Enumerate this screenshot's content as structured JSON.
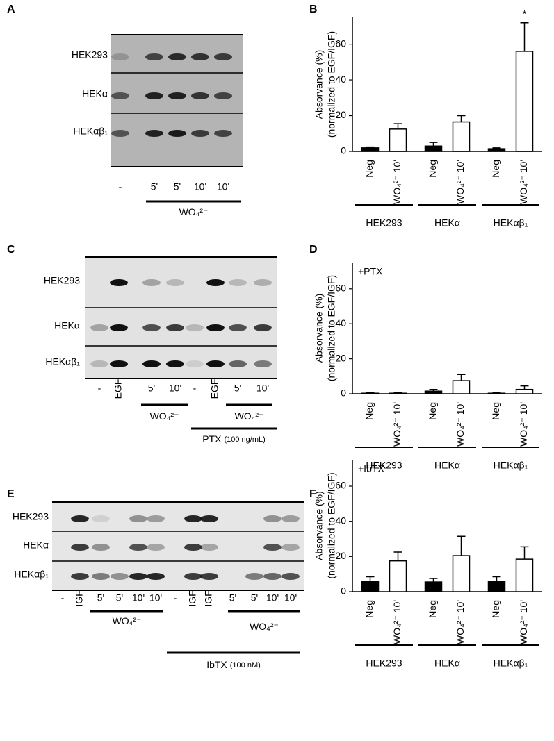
{
  "blots": [
    {
      "panel": "A",
      "rows": [
        "HEK293",
        "HEKα",
        "HEKαβ₁"
      ],
      "lanes": [
        "-",
        "5'",
        "5'",
        "10'",
        "10'"
      ],
      "groups": [
        {
          "label": "WO₄²⁻"
        }
      ]
    },
    {
      "panel": "C",
      "rows": [
        "HEK293",
        "HEKα",
        "HEKαβ₁"
      ],
      "lanes": [
        "-",
        "EGF",
        "5'",
        "10'",
        "-",
        "EGF",
        "5'",
        "10'"
      ],
      "groups": [
        {
          "label": "WO₄²⁻"
        },
        {
          "label": "WO₄²⁻"
        },
        {
          "label": "PTX",
          "note": "(100 ng/mL)"
        }
      ]
    },
    {
      "panel": "E",
      "rows": [
        "HEK293",
        "HEKα",
        "HEKαβ₁"
      ],
      "lanes": [
        "-",
        "IGF",
        "5'",
        "5'",
        "10'",
        "10'",
        "-",
        "IGF",
        "IGF",
        "5'",
        "5'",
        "10'",
        "10'"
      ],
      "groups": [
        {
          "label": "WO₄²⁻"
        },
        {
          "label": "WO₄²⁻"
        },
        {
          "label": "IbTX",
          "note": "(100 nM)"
        }
      ]
    }
  ],
  "chart_data": [
    {
      "type": "bar",
      "panel": "B",
      "y_label": [
        "Absorvance (%)",
        "(normalized to EGF/IGF)"
      ],
      "categories": [
        "Neg",
        "WO₄²⁻ 10'",
        "Neg",
        "WO₄²⁻ 10'",
        "Neg",
        "WO₄²⁻ 10'"
      ],
      "groups": [
        "HEK293",
        "HEKα",
        "HEKαβ₁"
      ],
      "values": [
        2,
        12.5,
        3,
        16.5,
        1.5,
        56
      ],
      "errors": [
        0.5,
        3,
        2,
        3.5,
        0.5,
        16
      ],
      "colors": [
        "#000000",
        "#ffffff",
        "#000000",
        "#ffffff",
        "#000000",
        "#ffffff"
      ],
      "marker": {
        "text": "*",
        "category_index": 5
      },
      "ylim": [
        0,
        75
      ],
      "yticks": [
        0,
        20,
        40,
        60
      ]
    },
    {
      "type": "bar",
      "panel": "D",
      "annotation": "+PTX",
      "y_label": [
        "Absorvance (%)",
        "(normalized to EGF/IGF)"
      ],
      "categories": [
        "Neg",
        "WO₄²⁻ 10'",
        "Neg",
        "WO₄²⁻ 10'",
        "Neg",
        "WO₄²⁻ 10'"
      ],
      "groups": [
        "HEK293",
        "HEKα",
        "HEKαβ₁"
      ],
      "values": [
        0.3,
        0.3,
        1.5,
        7.5,
        0.3,
        2.5
      ],
      "errors": [
        0.3,
        0.3,
        1,
        3.5,
        0.3,
        2
      ],
      "colors": [
        "#000000",
        "#ffffff",
        "#000000",
        "#ffffff",
        "#000000",
        "#ffffff"
      ],
      "ylim": [
        0,
        75
      ],
      "yticks": [
        0,
        20,
        40,
        60
      ]
    },
    {
      "type": "bar",
      "panel": "F",
      "annotation": "+IbTX",
      "y_label": [
        "Absorvance (%)",
        "(normalized to EGF/IGF)"
      ],
      "categories": [
        "Neg",
        "WO₄²⁻ 10'",
        "Neg",
        "WO₄²⁻ 10'",
        "Neg",
        "WO₄²⁻ 10'"
      ],
      "groups": [
        "HEK293",
        "HEKα",
        "HEKαβ₁"
      ],
      "values": [
        6,
        17.5,
        5.5,
        20.5,
        6,
        18.5
      ],
      "errors": [
        2.5,
        5,
        2,
        11,
        2.5,
        7
      ],
      "colors": [
        "#000000",
        "#ffffff",
        "#000000",
        "#ffffff",
        "#000000",
        "#ffffff"
      ],
      "ylim": [
        0,
        75
      ],
      "yticks": [
        0,
        20,
        40,
        60
      ]
    }
  ]
}
